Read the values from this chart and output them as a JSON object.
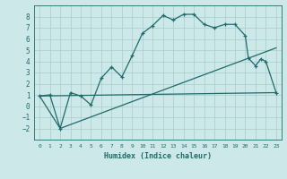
{
  "xlabel": "Humidex (Indice chaleur)",
  "xlim": [
    -0.5,
    23.5
  ],
  "ylim": [
    -3,
    9
  ],
  "yticks": [
    -2,
    -1,
    0,
    1,
    2,
    3,
    4,
    5,
    6,
    7,
    8
  ],
  "xticks": [
    0,
    1,
    2,
    3,
    4,
    5,
    6,
    7,
    8,
    9,
    10,
    11,
    12,
    13,
    14,
    15,
    16,
    17,
    18,
    19,
    20,
    21,
    22,
    23
  ],
  "bg_color": "#cde8e8",
  "grid_color": "#a8cccc",
  "line_color": "#1e6b6b",
  "line1_x": [
    0,
    1,
    2,
    3,
    4,
    5,
    6,
    7,
    8,
    9,
    10,
    11,
    12,
    13,
    14,
    15,
    16,
    17,
    18,
    19,
    20,
    20.3,
    21,
    21.5,
    22,
    23
  ],
  "line1_y": [
    0.9,
    1.0,
    -2.0,
    1.2,
    0.9,
    0.1,
    2.5,
    3.5,
    2.6,
    4.5,
    6.5,
    7.2,
    8.1,
    7.7,
    8.2,
    8.2,
    7.3,
    7.0,
    7.3,
    7.3,
    6.3,
    4.3,
    3.6,
    4.2,
    4.0,
    1.2
  ],
  "line2_x": [
    0,
    2,
    23
  ],
  "line2_y": [
    0.9,
    -2.0,
    5.2
  ],
  "line3_x": [
    0,
    23
  ],
  "line3_y": [
    0.9,
    1.2
  ],
  "font_color": "#1e6b6b",
  "font_family": "monospace"
}
